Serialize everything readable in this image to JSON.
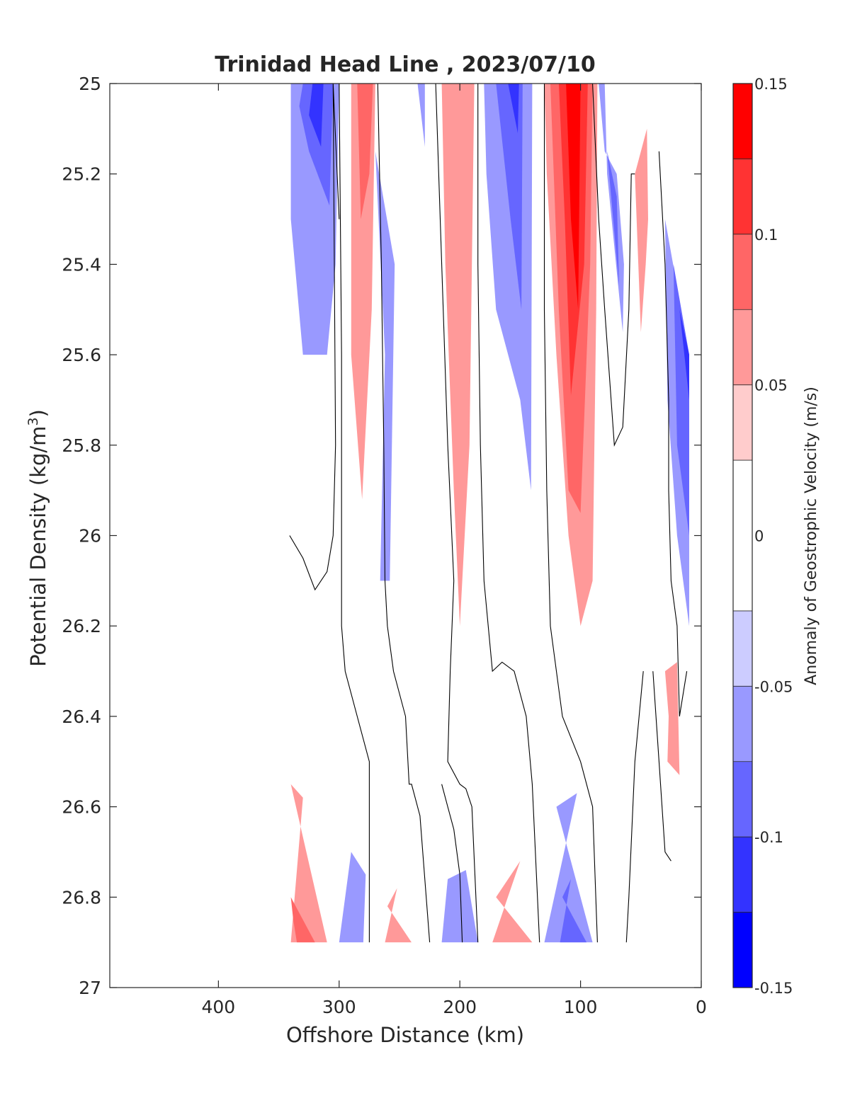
{
  "chart_data": {
    "type": "heatmap",
    "subtype": "filled-contour",
    "title": "Trinidad Head Line , 2023/07/10",
    "xlabel": "Offshore Distance (km)",
    "ylabel_main": "Potential Density (kg/m",
    "ylabel_sup": "3",
    "ylabel_tail": ")",
    "colorbar_label": "Anomaly of Geostrophic Velocity (m/s)",
    "x_axis": {
      "range": [
        490,
        0
      ],
      "reversed": true,
      "ticks": [
        400,
        300,
        200,
        100,
        0
      ],
      "tick_labels": [
        "400",
        "300",
        "200",
        "100",
        "0"
      ]
    },
    "y_axis": {
      "range": [
        25,
        27
      ],
      "reversed": true,
      "ticks": [
        25,
        25.2,
        25.4,
        25.6,
        25.8,
        26,
        26.2,
        26.4,
        26.6,
        26.8,
        27
      ],
      "tick_labels": [
        "25",
        "25.2",
        "25.4",
        "25.6",
        "25.8",
        "26",
        "26.2",
        "26.4",
        "26.6",
        "26.8",
        "27"
      ]
    },
    "colorbar": {
      "range": [
        -0.15,
        0.15
      ],
      "ticks": [
        0.15,
        0.1,
        0.05,
        0,
        -0.05,
        -0.1,
        -0.15
      ],
      "tick_labels": [
        "0.15",
        "0.1",
        "0.05",
        "0",
        "-0.05",
        "-0.1",
        "-0.15"
      ],
      "levels": [
        {
          "from": 0.125,
          "to": 0.15,
          "color": "#ff0000"
        },
        {
          "from": 0.1,
          "to": 0.125,
          "color": "#ff3333"
        },
        {
          "from": 0.075,
          "to": 0.1,
          "color": "#ff6666"
        },
        {
          "from": 0.05,
          "to": 0.075,
          "color": "#ff9999"
        },
        {
          "from": 0.025,
          "to": 0.05,
          "color": "#ffcccc"
        },
        {
          "from": -0.025,
          "to": 0.025,
          "color": "#ffffff"
        },
        {
          "from": -0.05,
          "to": -0.025,
          "color": "#ccccff"
        },
        {
          "from": -0.075,
          "to": -0.05,
          "color": "#9999ff"
        },
        {
          "from": -0.1,
          "to": -0.075,
          "color": "#6666ff"
        },
        {
          "from": -0.125,
          "to": -0.1,
          "color": "#3333ff"
        },
        {
          "from": -0.15,
          "to": -0.125,
          "color": "#0000ff"
        }
      ]
    },
    "regions": [
      {
        "level": -0.05,
        "points": [
          [
            340,
            25
          ],
          [
            300,
            25
          ],
          [
            303,
            25.4
          ],
          [
            310,
            25.6
          ],
          [
            325,
            25.6
          ],
          [
            330,
            25.6
          ],
          [
            340,
            25.3
          ]
        ]
      },
      {
        "level": -0.075,
        "points": [
          [
            330,
            25
          ],
          [
            305,
            25
          ],
          [
            308,
            25.27
          ],
          [
            325,
            25.15
          ],
          [
            333,
            25.05
          ]
        ]
      },
      {
        "level": -0.1,
        "points": [
          [
            322,
            25
          ],
          [
            313,
            25
          ],
          [
            315,
            25.14
          ],
          [
            325,
            25.07
          ]
        ]
      },
      {
        "level": 0.05,
        "points": [
          [
            290,
            25
          ],
          [
            270,
            25
          ],
          [
            273,
            25.5
          ],
          [
            281,
            25.92
          ],
          [
            290,
            25.6
          ]
        ]
      },
      {
        "level": 0.075,
        "points": [
          [
            285,
            25
          ],
          [
            272,
            25
          ],
          [
            275,
            25.2
          ],
          [
            282,
            25.3
          ]
        ]
      },
      {
        "level": -0.05,
        "points": [
          [
            270,
            25.15
          ],
          [
            254,
            25.4
          ],
          [
            258,
            26.1
          ],
          [
            266,
            26.1
          ],
          [
            262,
            25.6
          ]
        ]
      },
      {
        "level": -0.05,
        "points": [
          [
            235,
            25
          ],
          [
            229,
            25
          ],
          [
            229,
            25.14
          ]
        ]
      },
      {
        "level": 0.05,
        "points": [
          [
            215,
            25
          ],
          [
            188,
            25
          ],
          [
            192,
            25.8
          ],
          [
            200,
            26.2
          ],
          [
            205,
            25.9
          ],
          [
            212,
            25.4
          ]
        ]
      },
      {
        "level": -0.05,
        "points": [
          [
            180,
            25
          ],
          [
            140,
            25
          ],
          [
            141,
            25.9
          ],
          [
            150,
            25.7
          ],
          [
            170,
            25.5
          ],
          [
            178,
            25.2
          ]
        ]
      },
      {
        "level": -0.075,
        "points": [
          [
            170,
            25
          ],
          [
            148,
            25
          ],
          [
            149,
            25.5
          ],
          [
            158,
            25.3
          ]
        ]
      },
      {
        "level": -0.1,
        "points": [
          [
            160,
            25
          ],
          [
            151,
            25
          ],
          [
            152,
            25.11
          ]
        ]
      },
      {
        "level": 0.05,
        "points": [
          [
            130,
            25
          ],
          [
            86,
            25
          ],
          [
            87,
            25.5
          ],
          [
            90,
            26.1
          ],
          [
            100,
            26.2
          ],
          [
            110,
            26
          ],
          [
            120,
            25.6
          ],
          [
            128,
            25.2
          ]
        ]
      },
      {
        "level": 0.075,
        "points": [
          [
            125,
            25
          ],
          [
            90,
            25
          ],
          [
            92,
            25.4
          ],
          [
            100,
            25.95
          ],
          [
            110,
            25.9
          ],
          [
            118,
            25.5
          ]
        ]
      },
      {
        "level": 0.1,
        "points": [
          [
            118,
            25
          ],
          [
            94,
            25
          ],
          [
            97,
            25.4
          ],
          [
            108,
            25.69
          ],
          [
            113,
            25.3
          ]
        ]
      },
      {
        "level": 0.125,
        "points": [
          [
            112,
            25
          ],
          [
            100,
            25
          ],
          [
            102,
            25.5
          ],
          [
            108,
            25.3
          ]
        ]
      },
      {
        "level": -0.05,
        "points": [
          [
            85,
            25
          ],
          [
            80,
            25
          ],
          [
            78,
            25.2
          ],
          [
            65,
            25.55
          ],
          [
            64,
            25.4
          ],
          [
            70,
            25.2
          ],
          [
            80,
            25.15
          ]
        ]
      },
      {
        "level": -0.075,
        "points": [
          [
            78,
            25.15
          ],
          [
            70,
            25.25
          ],
          [
            68,
            25.45
          ]
        ]
      },
      {
        "level": 0.05,
        "points": [
          [
            45,
            25.1
          ],
          [
            55,
            25.2
          ],
          [
            50,
            25.55
          ],
          [
            46,
            25.4
          ],
          [
            44,
            25.3
          ]
        ]
      },
      {
        "level": -0.05,
        "points": [
          [
            30,
            25.3
          ],
          [
            10,
            25.6
          ],
          [
            10,
            26.2
          ],
          [
            20,
            26
          ],
          [
            28,
            25.7
          ]
        ]
      },
      {
        "level": -0.075,
        "points": [
          [
            23,
            25.4
          ],
          [
            10,
            25.6
          ],
          [
            10,
            26
          ],
          [
            20,
            25.8
          ]
        ]
      },
      {
        "level": -0.1,
        "points": [
          [
            18,
            25.5
          ],
          [
            10,
            25.6
          ],
          [
            10,
            25.7
          ]
        ]
      },
      {
        "level": 0.05,
        "points": [
          [
            30,
            26.3
          ],
          [
            20,
            26.28
          ],
          [
            18,
            26.53
          ],
          [
            28,
            26.5
          ],
          [
            27,
            26.4
          ]
        ]
      },
      {
        "level": 0.05,
        "points": [
          [
            340,
            26.55
          ],
          [
            310,
            26.9
          ],
          [
            340,
            26.9
          ],
          [
            330,
            26.58
          ]
        ]
      },
      {
        "level": 0.075,
        "points": [
          [
            340,
            26.8
          ],
          [
            320,
            26.9
          ],
          [
            335,
            26.9
          ],
          [
            338,
            26.85
          ]
        ]
      },
      {
        "level": -0.05,
        "points": [
          [
            290,
            26.7
          ],
          [
            300,
            26.9
          ],
          [
            280,
            26.9
          ],
          [
            278,
            26.75
          ]
        ]
      },
      {
        "level": 0.05,
        "points": [
          [
            260,
            26.82
          ],
          [
            240,
            26.9
          ],
          [
            262,
            26.9
          ],
          [
            252,
            26.78
          ]
        ]
      },
      {
        "level": -0.05,
        "points": [
          [
            210,
            26.76
          ],
          [
            215,
            26.9
          ],
          [
            185,
            26.9
          ],
          [
            195,
            26.74
          ]
        ]
      },
      {
        "level": 0.05,
        "points": [
          [
            170,
            26.8
          ],
          [
            140,
            26.9
          ],
          [
            173,
            26.9
          ],
          [
            150,
            26.72
          ]
        ]
      },
      {
        "level": -0.05,
        "points": [
          [
            120,
            26.6
          ],
          [
            90,
            26.9
          ],
          [
            130,
            26.9
          ],
          [
            103,
            26.57
          ]
        ]
      },
      {
        "level": -0.075,
        "points": [
          [
            115,
            26.8
          ],
          [
            95,
            26.9
          ],
          [
            117,
            26.9
          ],
          [
            108,
            26.76
          ]
        ]
      }
    ],
    "zero_contours": [
      [
        [
          341,
          26
        ],
        [
          330,
          26.05
        ],
        [
          320,
          26.12
        ],
        [
          310,
          26.08
        ],
        [
          305,
          26
        ],
        [
          303,
          25.8
        ],
        [
          305,
          25
        ],
        [
          300,
          25.3
        ]
      ],
      [
        [
          300,
          25
        ],
        [
          298,
          25.6
        ],
        [
          298,
          25.8
        ],
        [
          298,
          26.2
        ],
        [
          295,
          26.3
        ],
        [
          285,
          26.4
        ],
        [
          275,
          26.5
        ],
        [
          275,
          26.9
        ]
      ],
      [
        [
          268,
          25
        ],
        [
          265,
          25.4
        ],
        [
          263,
          25.8
        ],
        [
          262,
          26.1
        ],
        [
          260,
          26.2
        ],
        [
          255,
          26.3
        ],
        [
          245,
          26.4
        ],
        [
          242,
          26.55
        ],
        [
          240,
          26.55
        ],
        [
          233,
          26.62
        ],
        [
          225,
          26.9
        ]
      ],
      [
        [
          220,
          25
        ],
        [
          215,
          25.4
        ],
        [
          210,
          25.8
        ],
        [
          205,
          26.1
        ],
        [
          208,
          26.3
        ],
        [
          210,
          26.5
        ],
        [
          200,
          26.55
        ],
        [
          195,
          26.56
        ],
        [
          190,
          26.6
        ],
        [
          185,
          26.9
        ]
      ],
      [
        [
          215,
          26.55
        ],
        [
          210,
          26.6
        ],
        [
          205,
          26.65
        ],
        [
          200,
          26.75
        ],
        [
          198,
          26.9
        ]
      ],
      [
        [
          185,
          25
        ],
        [
          185,
          25.4
        ],
        [
          183,
          25.8
        ],
        [
          180,
          26.1
        ],
        [
          173,
          26.3
        ],
        [
          165,
          26.28
        ],
        [
          155,
          26.3
        ],
        [
          145,
          26.4
        ],
        [
          140,
          26.55
        ],
        [
          134,
          26.9
        ]
      ],
      [
        [
          130,
          25
        ],
        [
          130,
          25.5
        ],
        [
          128,
          25.9
        ],
        [
          125,
          26.2
        ],
        [
          115,
          26.4
        ],
        [
          100,
          26.5
        ],
        [
          90,
          26.6
        ],
        [
          86,
          26.9
        ]
      ],
      [
        [
          90,
          25
        ],
        [
          85,
          25.3
        ],
        [
          80,
          25.5
        ],
        [
          72,
          25.8
        ],
        [
          65,
          25.76
        ],
        [
          60,
          25.5
        ],
        [
          58,
          25.2
        ],
        [
          55,
          25.2
        ]
      ],
      [
        [
          35,
          25.15
        ],
        [
          30,
          25.4
        ],
        [
          27,
          25.7
        ],
        [
          27,
          25.9
        ],
        [
          25,
          26.1
        ],
        [
          20,
          26.2
        ],
        [
          18,
          26.4
        ],
        [
          12,
          26.3
        ]
      ],
      [
        [
          48,
          26.3
        ],
        [
          55,
          26.5
        ],
        [
          60,
          26.8
        ],
        [
          62,
          26.9
        ]
      ],
      [
        [
          40,
          26.3
        ],
        [
          35,
          26.5
        ],
        [
          30,
          26.7
        ],
        [
          25,
          26.72
        ]
      ]
    ]
  }
}
